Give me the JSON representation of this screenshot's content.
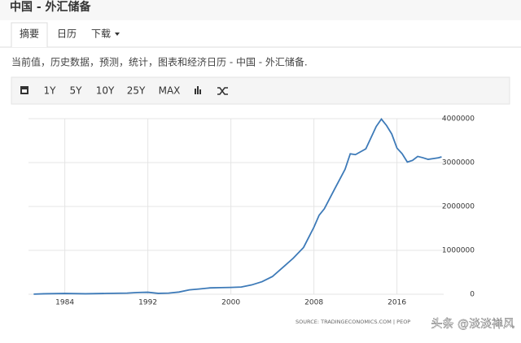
{
  "header": {
    "title": "中国 - 外汇储备"
  },
  "tabs": [
    "摘要",
    "日历",
    "下载"
  ],
  "description": "当前值，历史数据，预测，统计，图表和经济日历 - 中国 - 外汇储备.",
  "toolbar": [
    "1Y",
    "5Y",
    "10Y",
    "25Y",
    "MAX"
  ],
  "chart_data": {
    "type": "line",
    "color": "#3d7ab8",
    "grid": true,
    "x": [
      1981,
      1982,
      1984,
      1986,
      1988,
      1990,
      1991,
      1992,
      1993,
      1994,
      1995,
      1996,
      1997,
      1998,
      1999,
      2000,
      2001,
      2002,
      2003,
      2004,
      2005,
      2006,
      2007,
      2008,
      2008.5,
      2009,
      2010,
      2011,
      2011.5,
      2012,
      2013,
      2014,
      2014.5,
      2015,
      2015.5,
      2016,
      2016.5,
      2017,
      2017.5,
      2018,
      2018.5,
      2019,
      2019.5,
      2020,
      2020.3
    ],
    "values": [
      2000,
      10000,
      17000,
      10000,
      18000,
      25000,
      40000,
      45000,
      20000,
      25000,
      50000,
      100000,
      120000,
      145000,
      150000,
      155000,
      165000,
      212000,
      286000,
      403000,
      610000,
      819000,
      1066000,
      1528000,
      1800000,
      1946000,
      2399000,
      2847000,
      3200000,
      3181000,
      3312000,
      3821000,
      3990000,
      3843000,
      3650000,
      3330000,
      3200000,
      3011000,
      3050000,
      3140000,
      3110000,
      3073000,
      3090000,
      3108000,
      3130000
    ],
    "xlim": [
      1980.5,
      2020.5
    ],
    "xticks": [
      1984,
      1992,
      2000,
      2008,
      2016
    ],
    "ylim": [
      0,
      4000000
    ],
    "yticks": [
      0,
      1000000,
      2000000,
      3000000,
      4000000
    ]
  },
  "source": "SOURCE: TRADINGECONOMICS.COM | PEOP",
  "watermark": "头条 @淡淡禅风"
}
